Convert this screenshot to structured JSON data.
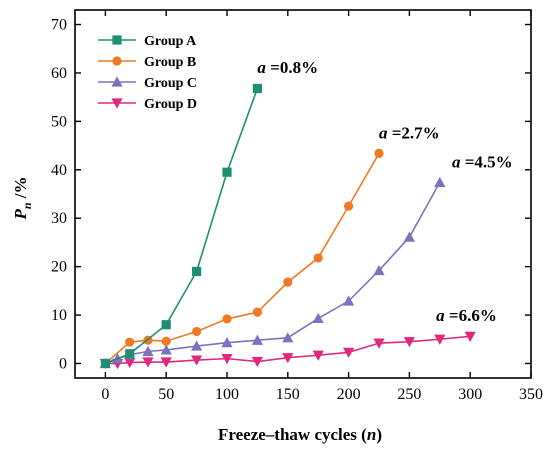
{
  "chart_data": {
    "type": "line",
    "xlabel_main": "Freeze–thaw cycles (",
    "xlabel_var": "n",
    "xlabel_end": ")",
    "ylabel_main": "P",
    "ylabel_sub": "n",
    "ylabel_unit": " /%",
    "xlim": [
      -25,
      350
    ],
    "ylim": [
      -3,
      73
    ],
    "xticks": [
      0,
      50,
      100,
      150,
      200,
      250,
      300,
      350
    ],
    "yticks": [
      0,
      10,
      20,
      30,
      40,
      50,
      60,
      70
    ],
    "legend_position": "top-left",
    "series": [
      {
        "name": "Group A",
        "color": "#1f8f73",
        "marker": "square",
        "x": [
          0,
          20,
          50,
          75,
          100,
          125
        ],
        "y": [
          0.0,
          2.0,
          8.0,
          19.0,
          39.5,
          56.8
        ]
      },
      {
        "name": "Group B",
        "color": "#f07a23",
        "marker": "circle",
        "x": [
          0,
          20,
          35,
          50,
          75,
          100,
          125,
          150,
          175,
          200,
          225
        ],
        "y": [
          0.0,
          4.4,
          4.8,
          4.6,
          6.6,
          9.2,
          10.6,
          16.8,
          21.8,
          32.5,
          43.4
        ]
      },
      {
        "name": "Group C",
        "color": "#7b73bf",
        "marker": "triangle-up",
        "x": [
          0,
          10,
          20,
          35,
          50,
          75,
          100,
          125,
          150,
          175,
          200,
          225,
          250,
          275
        ],
        "y": [
          0.0,
          1.0,
          1.8,
          2.5,
          2.8,
          3.6,
          4.3,
          4.8,
          5.3,
          9.3,
          12.9,
          19.2,
          26.1,
          37.4
        ]
      },
      {
        "name": "Group D",
        "color": "#e0287f",
        "marker": "triangle-down",
        "x": [
          0,
          10,
          20,
          35,
          50,
          75,
          100,
          125,
          150,
          175,
          200,
          225,
          250,
          275,
          300
        ],
        "y": [
          0.0,
          0.0,
          0.2,
          0.3,
          0.3,
          0.7,
          1.0,
          0.4,
          1.2,
          1.7,
          2.3,
          4.2,
          4.5,
          5.0,
          5.6
        ]
      }
    ],
    "annotations": [
      {
        "a": "a",
        "text": " =0.8%",
        "x": 125,
        "y": 60.0
      },
      {
        "a": "a",
        "text": " =2.7%",
        "x": 225,
        "y": 46.5
      },
      {
        "a": "a",
        "text": " =4.5%",
        "x": 285,
        "y": 40.5
      },
      {
        "a": "a",
        "text": " =6.6%",
        "x": 272,
        "y": 8.8
      }
    ]
  }
}
